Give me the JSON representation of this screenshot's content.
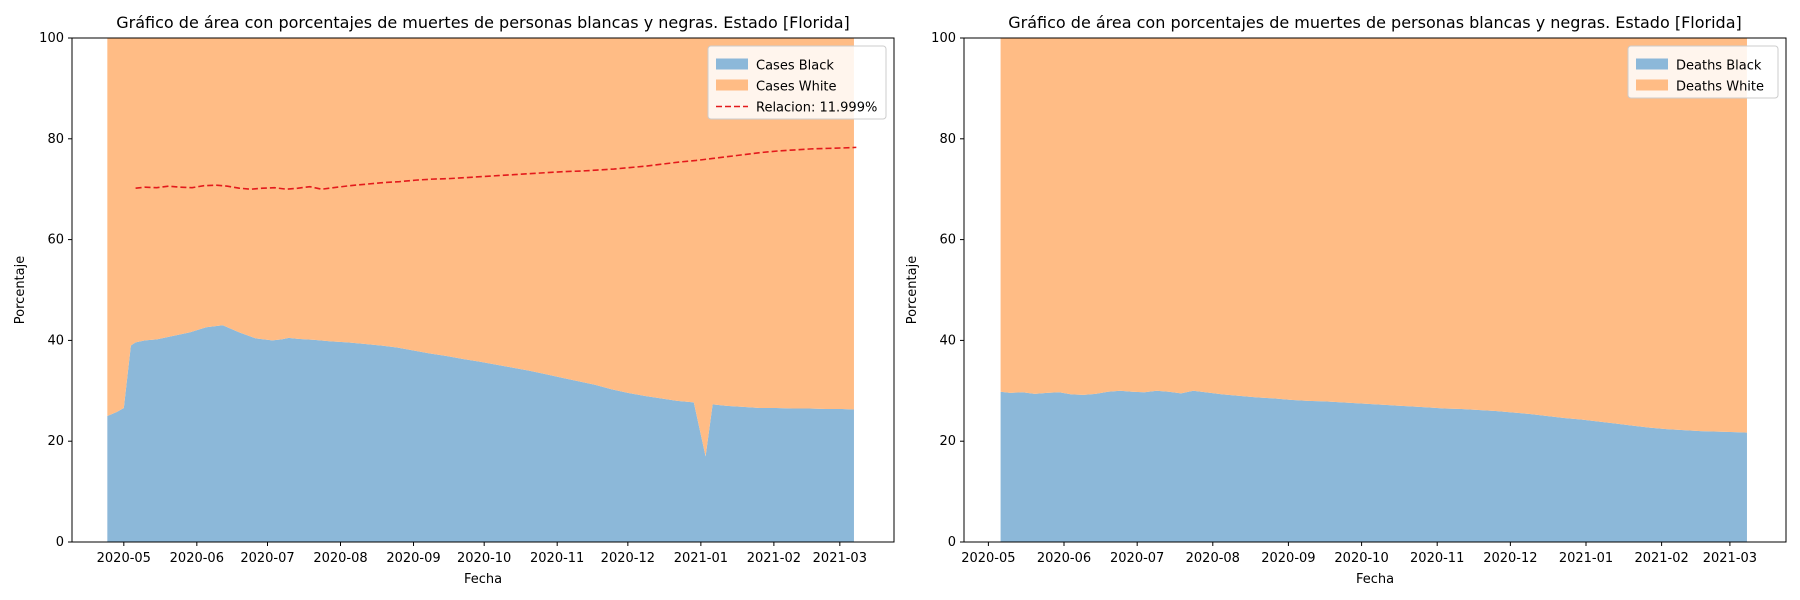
{
  "chart_data": [
    {
      "type": "area",
      "stacked": true,
      "title": "Gráfico de área con porcentajes de muertes de personas blancas y negras. Estado [Florida]",
      "xlabel": "Fecha",
      "ylabel": "Porcentaje",
      "ylim": [
        0,
        100
      ],
      "xlim": [
        "2020-04-09",
        "2021-03-24"
      ],
      "yticks": [
        0,
        20,
        40,
        60,
        80,
        100
      ],
      "xticks": [
        "2020-05-01",
        "2020-06-01",
        "2020-07-01",
        "2020-08-01",
        "2020-09-01",
        "2020-10-01",
        "2020-11-01",
        "2020-12-01",
        "2021-01-01",
        "2021-02-01",
        "2021-03-01"
      ],
      "xtick_labels": [
        "2020-05",
        "2020-06",
        "2020-07",
        "2020-08",
        "2020-09",
        "2020-10",
        "2020-11",
        "2020-12",
        "2021-01",
        "2021-02",
        "2021-03"
      ],
      "legend_position": "top-right",
      "grid": false,
      "x": [
        "2020-04-24",
        "2020-04-28",
        "2020-05-01",
        "2020-05-04",
        "2020-05-06",
        "2020-05-10",
        "2020-05-15",
        "2020-05-22",
        "2020-05-29",
        "2020-06-05",
        "2020-06-12",
        "2020-06-19",
        "2020-06-26",
        "2020-07-03",
        "2020-07-07",
        "2020-07-10",
        "2020-07-14",
        "2020-07-21",
        "2020-07-28",
        "2020-08-04",
        "2020-08-11",
        "2020-08-18",
        "2020-08-25",
        "2020-09-01",
        "2020-09-08",
        "2020-09-15",
        "2020-09-22",
        "2020-09-29",
        "2020-10-06",
        "2020-10-13",
        "2020-10-20",
        "2020-10-27",
        "2020-11-03",
        "2020-11-10",
        "2020-11-17",
        "2020-11-24",
        "2020-12-01",
        "2020-12-08",
        "2020-12-15",
        "2020-12-22",
        "2020-12-29",
        "2021-01-03",
        "2021-01-06",
        "2021-01-12",
        "2021-01-19",
        "2021-01-26",
        "2021-02-02",
        "2021-02-09",
        "2021-02-16",
        "2021-02-23",
        "2021-03-02",
        "2021-03-07"
      ],
      "series": [
        {
          "name": "Cases Black",
          "color": "#8cb8d9",
          "values": [
            25.0,
            25.8,
            26.6,
            39.0,
            39.6,
            40.0,
            40.2,
            40.9,
            41.6,
            42.6,
            43.0,
            41.6,
            40.4,
            40.0,
            40.2,
            40.5,
            40.3,
            40.1,
            39.8,
            39.6,
            39.3,
            39.0,
            38.6,
            38.0,
            37.4,
            36.9,
            36.3,
            35.8,
            35.2,
            34.6,
            34.0,
            33.3,
            32.6,
            31.9,
            31.2,
            30.3,
            29.6,
            29.0,
            28.5,
            28.0,
            27.7,
            17.0,
            27.3,
            27.0,
            26.8,
            26.6,
            26.6,
            26.5,
            26.5,
            26.4,
            26.4,
            26.3
          ]
        },
        {
          "name": "Cases White",
          "color": "#ffbc85",
          "values": [
            75.0,
            74.2,
            73.4,
            61.0,
            60.4,
            60.0,
            59.8,
            59.1,
            58.4,
            57.4,
            57.0,
            58.4,
            59.6,
            60.0,
            59.8,
            59.5,
            59.7,
            59.9,
            60.2,
            60.4,
            60.7,
            61.0,
            61.4,
            62.0,
            62.6,
            63.1,
            63.7,
            64.2,
            64.8,
            65.4,
            66.0,
            66.7,
            67.4,
            68.1,
            68.8,
            69.7,
            70.4,
            71.0,
            71.5,
            72.0,
            72.3,
            83.0,
            72.7,
            73.0,
            73.2,
            73.4,
            73.4,
            73.5,
            73.5,
            73.6,
            73.6,
            73.7
          ]
        }
      ],
      "line_series": {
        "name": "Relacion: 11.999%",
        "color": "#e31a1c",
        "style": "dashed",
        "x": [
          "2020-05-06",
          "2020-05-10",
          "2020-05-15",
          "2020-05-20",
          "2020-05-25",
          "2020-05-30",
          "2020-06-04",
          "2020-06-09",
          "2020-06-14",
          "2020-06-19",
          "2020-06-24",
          "2020-06-29",
          "2020-07-04",
          "2020-07-09",
          "2020-07-14",
          "2020-07-19",
          "2020-07-24",
          "2020-07-29",
          "2020-08-05",
          "2020-08-12",
          "2020-08-19",
          "2020-08-26",
          "2020-09-02",
          "2020-09-09",
          "2020-09-16",
          "2020-09-23",
          "2020-09-30",
          "2020-10-07",
          "2020-10-14",
          "2020-10-21",
          "2020-10-28",
          "2020-11-04",
          "2020-11-11",
          "2020-11-18",
          "2020-11-25",
          "2020-12-02",
          "2020-12-09",
          "2020-12-16",
          "2020-12-23",
          "2020-12-30",
          "2021-01-06",
          "2021-01-13",
          "2021-01-20",
          "2021-01-27",
          "2021-02-03",
          "2021-02-10",
          "2021-02-17",
          "2021-02-24",
          "2021-03-03",
          "2021-03-08"
        ],
        "values": [
          70.2,
          70.4,
          70.3,
          70.6,
          70.4,
          70.3,
          70.7,
          70.8,
          70.6,
          70.2,
          70.0,
          70.2,
          70.3,
          70.0,
          70.2,
          70.5,
          70.0,
          70.3,
          70.7,
          71.0,
          71.3,
          71.5,
          71.8,
          72.0,
          72.1,
          72.3,
          72.5,
          72.7,
          72.9,
          73.1,
          73.3,
          73.5,
          73.6,
          73.8,
          74.0,
          74.3,
          74.6,
          75.0,
          75.4,
          75.7,
          76.1,
          76.5,
          76.9,
          77.3,
          77.6,
          77.8,
          78.0,
          78.1,
          78.2,
          78.3
        ]
      }
    },
    {
      "type": "area",
      "stacked": true,
      "title": "Gráfico de área con porcentajes de muertes de personas blancas y negras. Estado [Florida]",
      "xlabel": "Fecha",
      "ylabel": "Porcentaje",
      "ylim": [
        0,
        100
      ],
      "xlim": [
        "2020-04-21",
        "2021-03-24"
      ],
      "yticks": [
        0,
        20,
        40,
        60,
        80,
        100
      ],
      "xticks": [
        "2020-05-01",
        "2020-06-01",
        "2020-07-01",
        "2020-08-01",
        "2020-09-01",
        "2020-10-01",
        "2020-11-01",
        "2020-12-01",
        "2021-01-01",
        "2021-02-01",
        "2021-03-01"
      ],
      "xtick_labels": [
        "2020-05",
        "2020-06",
        "2020-07",
        "2020-08",
        "2020-09",
        "2020-10",
        "2020-11",
        "2020-12",
        "2021-01",
        "2021-02",
        "2021-03"
      ],
      "legend_position": "top-right",
      "grid": false,
      "x": [
        "2020-05-06",
        "2020-05-10",
        "2020-05-15",
        "2020-05-20",
        "2020-05-25",
        "2020-05-30",
        "2020-06-04",
        "2020-06-09",
        "2020-06-14",
        "2020-06-19",
        "2020-06-24",
        "2020-06-29",
        "2020-07-04",
        "2020-07-09",
        "2020-07-14",
        "2020-07-19",
        "2020-07-24",
        "2020-07-29",
        "2020-08-05",
        "2020-08-12",
        "2020-08-19",
        "2020-08-26",
        "2020-09-02",
        "2020-09-09",
        "2020-09-16",
        "2020-09-23",
        "2020-09-30",
        "2020-10-07",
        "2020-10-14",
        "2020-10-21",
        "2020-10-28",
        "2020-11-04",
        "2020-11-11",
        "2020-11-18",
        "2020-11-25",
        "2020-12-02",
        "2020-12-09",
        "2020-12-16",
        "2020-12-23",
        "2020-12-30",
        "2021-01-06",
        "2021-01-13",
        "2021-01-20",
        "2021-01-27",
        "2021-02-03",
        "2021-02-10",
        "2021-02-17",
        "2021-02-24",
        "2021-03-03",
        "2021-03-08"
      ],
      "series": [
        {
          "name": "Deaths Black",
          "color": "#8cb8d9",
          "values": [
            29.8,
            29.6,
            29.7,
            29.4,
            29.6,
            29.7,
            29.3,
            29.2,
            29.4,
            29.8,
            30.0,
            29.8,
            29.7,
            30.0,
            29.8,
            29.5,
            30.0,
            29.7,
            29.3,
            29.0,
            28.7,
            28.5,
            28.2,
            28.0,
            27.9,
            27.7,
            27.5,
            27.3,
            27.1,
            26.9,
            26.7,
            26.5,
            26.4,
            26.2,
            26.0,
            25.7,
            25.4,
            25.0,
            24.6,
            24.3,
            23.9,
            23.5,
            23.1,
            22.7,
            22.4,
            22.2,
            22.0,
            21.9,
            21.8,
            21.7
          ]
        },
        {
          "name": "Deaths White",
          "color": "#ffbc85",
          "values": [
            70.2,
            70.4,
            70.3,
            70.6,
            70.4,
            70.3,
            70.7,
            70.8,
            70.6,
            70.2,
            70.0,
            70.2,
            70.3,
            70.0,
            70.2,
            70.5,
            70.0,
            70.3,
            70.7,
            71.0,
            71.3,
            71.5,
            71.8,
            72.0,
            72.1,
            72.3,
            72.5,
            72.7,
            72.9,
            73.1,
            73.3,
            73.5,
            73.6,
            73.8,
            74.0,
            74.3,
            74.6,
            75.0,
            75.4,
            75.7,
            76.1,
            76.5,
            76.9,
            77.3,
            77.6,
            77.8,
            78.0,
            78.1,
            78.2,
            78.3
          ]
        }
      ]
    }
  ]
}
